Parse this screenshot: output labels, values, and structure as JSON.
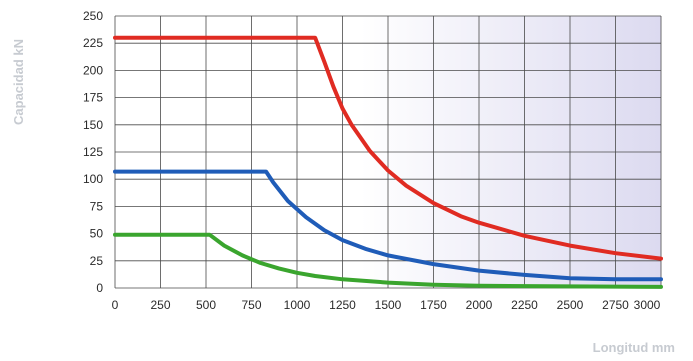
{
  "chart_data": {
    "type": "line",
    "title": "",
    "xlabel": "Longitud mm",
    "ylabel": "Capacidad kN",
    "xlim": [
      0,
      3000
    ],
    "ylim": [
      0,
      250
    ],
    "x_ticks": [
      0,
      250,
      500,
      750,
      1000,
      1250,
      1500,
      1750,
      2000,
      2250,
      2500,
      2750,
      3000
    ],
    "y_ticks": [
      0,
      25,
      50,
      75,
      100,
      125,
      150,
      175,
      200,
      225,
      250
    ],
    "grid": true,
    "legend": "none",
    "background_gradient": {
      "from": "#ffffff",
      "to": "#dcdaf0"
    },
    "series": [
      {
        "color": "#e02b22",
        "points": [
          [
            0,
            230
          ],
          [
            1100,
            230
          ],
          [
            1150,
            208
          ],
          [
            1200,
            185
          ],
          [
            1250,
            165
          ],
          [
            1300,
            150
          ],
          [
            1400,
            126
          ],
          [
            1500,
            108
          ],
          [
            1600,
            94
          ],
          [
            1750,
            78
          ],
          [
            1900,
            66
          ],
          [
            2000,
            60
          ],
          [
            2250,
            48
          ],
          [
            2500,
            39
          ],
          [
            2750,
            32
          ],
          [
            3000,
            27
          ]
        ]
      },
      {
        "color": "#1f5cb8",
        "points": [
          [
            0,
            107
          ],
          [
            830,
            107
          ],
          [
            870,
            97
          ],
          [
            950,
            80
          ],
          [
            1050,
            65
          ],
          [
            1150,
            53
          ],
          [
            1250,
            44
          ],
          [
            1375,
            36
          ],
          [
            1500,
            30
          ],
          [
            1750,
            22
          ],
          [
            2000,
            16
          ],
          [
            2250,
            12
          ],
          [
            2500,
            9
          ],
          [
            2750,
            8
          ],
          [
            3000,
            8
          ]
        ]
      },
      {
        "color": "#3aa52e",
        "points": [
          [
            0,
            49
          ],
          [
            520,
            49
          ],
          [
            600,
            39
          ],
          [
            700,
            30
          ],
          [
            800,
            23
          ],
          [
            900,
            18
          ],
          [
            1000,
            14
          ],
          [
            1100,
            11
          ],
          [
            1250,
            8
          ],
          [
            1500,
            5
          ],
          [
            1750,
            3
          ],
          [
            2000,
            2
          ],
          [
            2500,
            1.5
          ],
          [
            3000,
            1
          ]
        ]
      }
    ]
  }
}
